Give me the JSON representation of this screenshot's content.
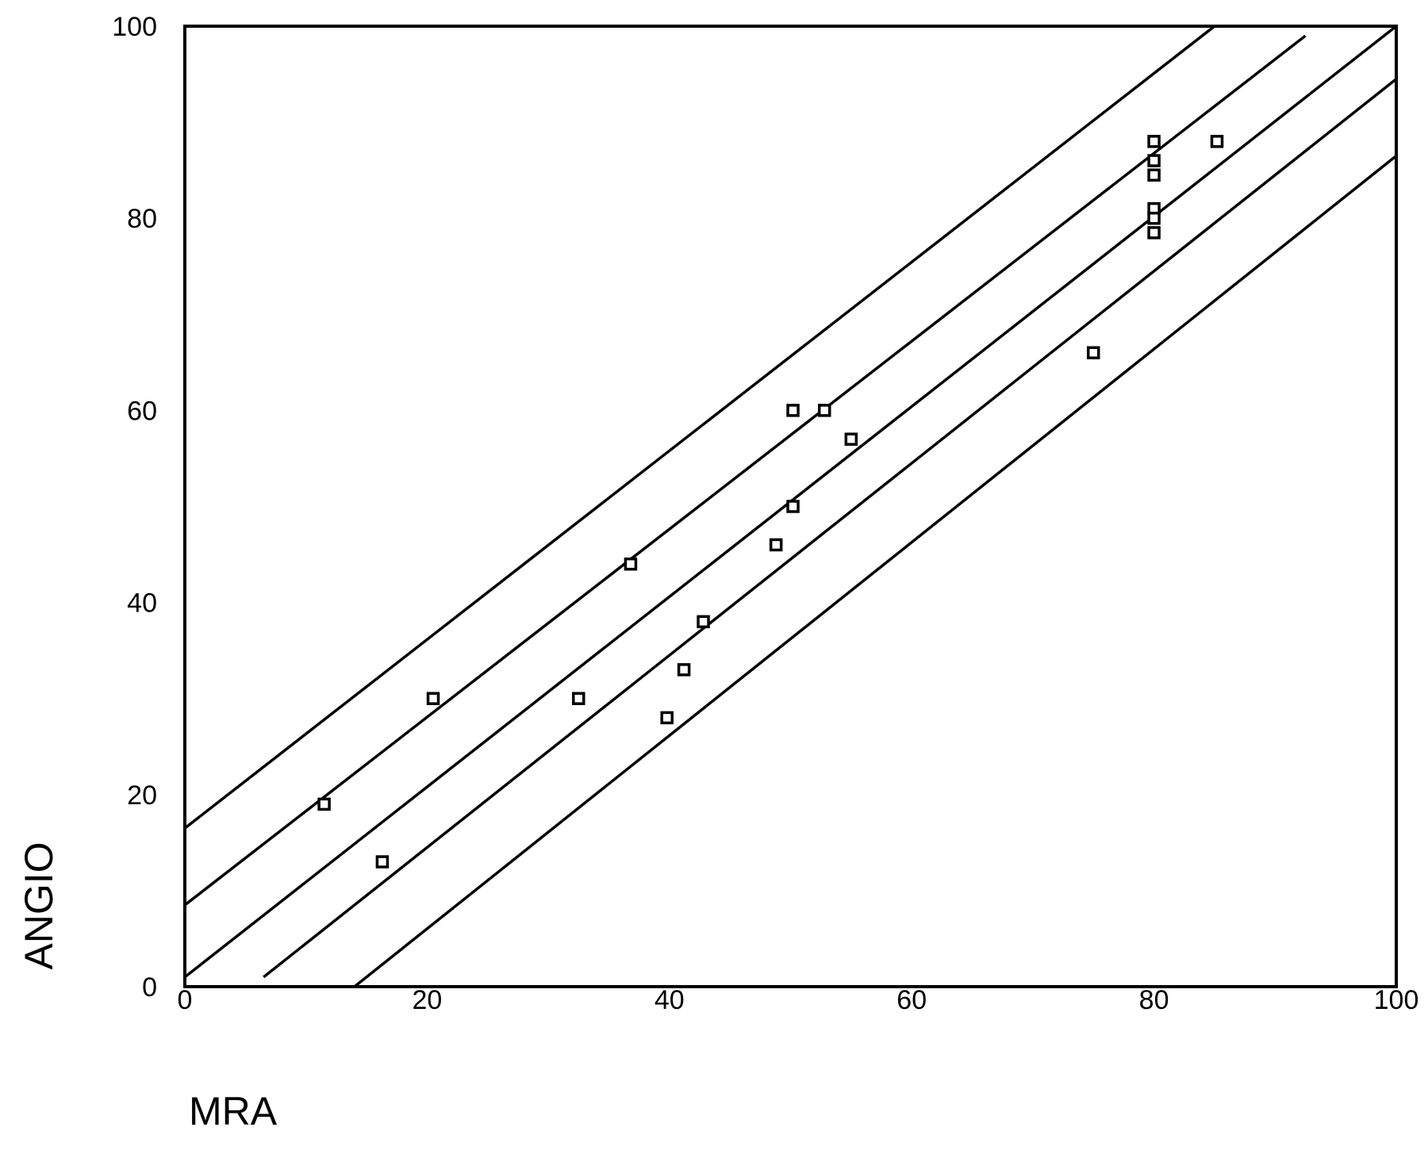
{
  "chart_data": {
    "type": "scatter",
    "title": "",
    "xlabel": "MRA",
    "ylabel": "ANGIO",
    "xlim": [
      0,
      100
    ],
    "ylim": [
      0,
      100
    ],
    "xticks": [
      "0",
      "20",
      "40",
      "60",
      "80",
      "100"
    ],
    "yticks": [
      "0",
      "20",
      "40",
      "60",
      "80",
      "100"
    ],
    "grid": false,
    "legend": "none",
    "points": [
      {
        "x": 11.5,
        "y": 19
      },
      {
        "x": 16.3,
        "y": 13
      },
      {
        "x": 20.5,
        "y": 30
      },
      {
        "x": 32.5,
        "y": 30
      },
      {
        "x": 36.8,
        "y": 44
      },
      {
        "x": 39.8,
        "y": 28
      },
      {
        "x": 41.2,
        "y": 33
      },
      {
        "x": 42.8,
        "y": 38
      },
      {
        "x": 48.8,
        "y": 46
      },
      {
        "x": 50.2,
        "y": 60
      },
      {
        "x": 50.2,
        "y": 50
      },
      {
        "x": 52.8,
        "y": 60
      },
      {
        "x": 55,
        "y": 57
      },
      {
        "x": 75,
        "y": 66
      },
      {
        "x": 80,
        "y": 88
      },
      {
        "x": 80,
        "y": 86
      },
      {
        "x": 80,
        "y": 84.5
      },
      {
        "x": 80,
        "y": 81
      },
      {
        "x": 80,
        "y": 80
      },
      {
        "x": 80,
        "y": 78.5
      },
      {
        "x": 85.2,
        "y": 88
      }
    ],
    "lines": [
      {
        "role": "regression",
        "x": [
          0,
          100
        ],
        "y": [
          1,
          100
        ]
      },
      {
        "role": "upper-confidence",
        "x": [
          0,
          92.5
        ],
        "y": [
          8.5,
          99
        ]
      },
      {
        "role": "lower-confidence",
        "x": [
          6.5,
          100
        ],
        "y": [
          1,
          94.5
        ]
      },
      {
        "role": "upper-prediction",
        "x": [
          0,
          85
        ],
        "y": [
          16.5,
          100
        ]
      },
      {
        "role": "lower-prediction",
        "x": [
          14,
          100
        ],
        "y": [
          0,
          86.5
        ]
      }
    ],
    "colors": {
      "marks": "#000000",
      "background": "#ffffff"
    }
  }
}
